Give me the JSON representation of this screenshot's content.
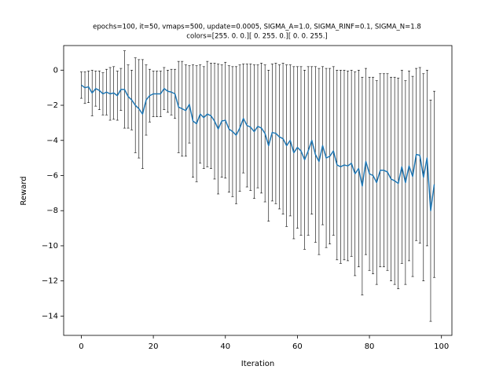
{
  "chart_data": {
    "type": "errorbar",
    "title": "epochs=100, it=50, vmaps=500, update=0.0005, SIGMA_A=1.0, SIGMA_RINF=0.1, SIGMA_N=1.8",
    "subtitle": "colors=[255.   0.   0.][  0. 255.   0.][  0.   0. 255.]",
    "x_label": "Iteration",
    "y_label": "Reward",
    "x": [
      0,
      1,
      2,
      3,
      4,
      5,
      6,
      7,
      8,
      9,
      10,
      11,
      12,
      13,
      14,
      15,
      16,
      17,
      18,
      19,
      20,
      21,
      22,
      23,
      24,
      25,
      26,
      27,
      28,
      29,
      30,
      31,
      32,
      33,
      34,
      35,
      36,
      37,
      38,
      39,
      40,
      41,
      42,
      43,
      44,
      45,
      46,
      47,
      48,
      49,
      50,
      51,
      52,
      53,
      54,
      55,
      56,
      57,
      58,
      59,
      60,
      61,
      62,
      63,
      64,
      65,
      66,
      67,
      68,
      69,
      70,
      71,
      72,
      73,
      74,
      75,
      76,
      77,
      78,
      79,
      80,
      81,
      82,
      83,
      84,
      85,
      86,
      87,
      88,
      89,
      90,
      91,
      92,
      93,
      94,
      95,
      96,
      97,
      98
    ],
    "series": [
      {
        "color": "#1f77b4",
        "error_color": "#000000",
        "values": [
          -0.85,
          -1.0,
          -0.95,
          -1.3,
          -1.05,
          -1.15,
          -1.35,
          -1.25,
          -1.35,
          -1.3,
          -1.45,
          -1.1,
          -1.1,
          -1.5,
          -1.7,
          -2.0,
          -2.2,
          -2.5,
          -1.7,
          -1.45,
          -1.35,
          -1.35,
          -1.35,
          -1.05,
          -1.2,
          -1.25,
          -1.35,
          -2.1,
          -2.2,
          -2.3,
          -1.95,
          -2.9,
          -3.05,
          -2.5,
          -2.7,
          -2.5,
          -2.6,
          -2.9,
          -3.35,
          -2.9,
          -2.85,
          -3.35,
          -3.5,
          -3.7,
          -3.3,
          -2.75,
          -3.15,
          -3.25,
          -3.5,
          -3.2,
          -3.3,
          -3.6,
          -4.3,
          -3.55,
          -3.6,
          -3.8,
          -3.9,
          -4.3,
          -4.0,
          -4.7,
          -4.4,
          -4.6,
          -5.1,
          -4.6,
          -4.0,
          -4.8,
          -5.2,
          -4.3,
          -5.0,
          -4.9,
          -4.6,
          -5.4,
          -5.5,
          -5.4,
          -5.45,
          -5.3,
          -5.9,
          -5.6,
          -6.6,
          -5.2,
          -5.9,
          -6.0,
          -6.4,
          -5.7,
          -5.7,
          -5.8,
          -6.2,
          -6.3,
          -6.45,
          -5.5,
          -6.4,
          -5.45,
          -6.05,
          -4.8,
          -4.85,
          -6.1,
          -5.0,
          -8.0,
          -6.5
        ],
        "errors": [
          0.75,
          0.9,
          0.9,
          1.3,
          1.0,
          1.1,
          1.2,
          1.3,
          1.5,
          1.5,
          1.4,
          1.2,
          2.2,
          1.8,
          1.7,
          2.7,
          2.8,
          3.1,
          2.0,
          1.5,
          1.3,
          1.3,
          1.3,
          1.2,
          1.2,
          1.3,
          1.4,
          2.6,
          2.7,
          2.6,
          2.2,
          3.2,
          3.3,
          2.8,
          2.9,
          3.0,
          3.0,
          3.3,
          3.7,
          3.2,
          3.3,
          3.6,
          3.7,
          3.9,
          3.6,
          3.1,
          3.5,
          3.6,
          3.8,
          3.5,
          3.7,
          3.9,
          4.3,
          3.9,
          4.0,
          4.1,
          4.3,
          4.6,
          4.3,
          4.9,
          4.6,
          4.8,
          5.1,
          4.8,
          4.2,
          5.0,
          5.3,
          4.5,
          5.1,
          5.0,
          4.8,
          5.4,
          5.5,
          5.4,
          5.4,
          5.3,
          5.8,
          5.6,
          6.2,
          5.3,
          5.5,
          5.6,
          5.8,
          5.5,
          5.5,
          5.6,
          5.8,
          5.9,
          6.0,
          5.5,
          5.8,
          5.4,
          5.7,
          4.9,
          5.0,
          5.9,
          5.0,
          6.3,
          5.3
        ]
      }
    ],
    "xlim": [
      -4.9,
      102.9
    ],
    "ylim": [
      -15.1,
      1.4
    ],
    "xticks": [
      0,
      20,
      40,
      60,
      80,
      100
    ],
    "yticks": [
      0,
      {
        "value": -2,
        "label": "−2"
      },
      {
        "value": -4,
        "label": "−4"
      },
      {
        "value": -6,
        "label": "−6"
      },
      {
        "value": -8,
        "label": "−8"
      },
      {
        "value": -10,
        "label": "−10"
      },
      {
        "value": -12,
        "label": "−12"
      },
      {
        "value": -14,
        "label": "−14"
      }
    ],
    "grid": false
  }
}
